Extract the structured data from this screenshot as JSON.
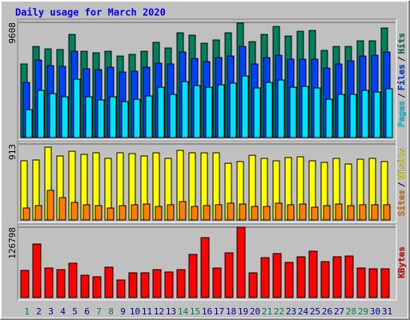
{
  "chart_data": [
    {
      "type": "bar",
      "title": "Daily usage for March 2020",
      "ylim": [
        0,
        9608
      ],
      "yticks": [
        9608
      ],
      "grid": true,
      "legend_separator": "/",
      "series": [
        {
          "name": "Hits",
          "color": "#00805c",
          "values": [
            6140,
            7600,
            7400,
            7340,
            8600,
            7200,
            7070,
            7200,
            6800,
            6940,
            7200,
            7940,
            7470,
            8740,
            8540,
            7870,
            8140,
            8740,
            9540,
            8000,
            8600,
            9270,
            8470,
            8870,
            8940,
            7270,
            7600,
            7600,
            8070,
            8070,
            9140
          ]
        },
        {
          "name": "Files",
          "color": "#0040ff",
          "values": [
            4600,
            6470,
            6000,
            5940,
            7200,
            5740,
            5670,
            5870,
            5470,
            5540,
            5870,
            6200,
            6140,
            7140,
            6600,
            6340,
            6670,
            6800,
            7600,
            6140,
            6670,
            6870,
            6540,
            6540,
            6540,
            5800,
            6140,
            6400,
            6800,
            6870,
            7140
          ]
        },
        {
          "name": "Pages",
          "color": "#00e0ff",
          "values": [
            2330,
            3940,
            3670,
            3400,
            4870,
            3400,
            3140,
            3400,
            3000,
            3200,
            3470,
            4200,
            3600,
            4670,
            4340,
            4200,
            4400,
            4540,
            5140,
            4140,
            4600,
            4800,
            4200,
            4270,
            4140,
            3200,
            3600,
            3600,
            3940,
            3800,
            4070
          ]
        }
      ]
    },
    {
      "type": "bar",
      "ylim": [
        0,
        913
      ],
      "yticks": [
        913
      ],
      "grid": true,
      "legend_separator": "/",
      "series": [
        {
          "name": "Visits",
          "color": "#ffff00",
          "values": [
            711,
            721,
            875,
            769,
            826,
            788,
            807,
            740,
            807,
            798,
            769,
            807,
            740,
            836,
            807,
            807,
            807,
            682,
            702,
            778,
            740,
            711,
            750,
            759,
            711,
            692,
            740,
            673,
            730,
            740,
            702
          ]
        },
        {
          "name": "Sites",
          "color": "#ff8000",
          "values": [
            144,
            173,
            356,
            269,
            211,
            183,
            173,
            144,
            173,
            183,
            192,
            163,
            183,
            221,
            163,
            173,
            183,
            202,
            192,
            163,
            163,
            202,
            183,
            192,
            154,
            173,
            192,
            173,
            183,
            183,
            183
          ]
        }
      ]
    },
    {
      "type": "bar",
      "ylim": [
        0,
        126798
      ],
      "yticks": [
        126798
      ],
      "grid": true,
      "categories": [
        "1",
        "2",
        "3",
        "4",
        "5",
        "6",
        "7",
        "8",
        "9",
        "10",
        "11",
        "12",
        "13",
        "14",
        "15",
        "16",
        "17",
        "18",
        "19",
        "20",
        "21",
        "22",
        "23",
        "24",
        "25",
        "26",
        "27",
        "28",
        "29",
        "30",
        "31"
      ],
      "category_colors": [
        "#008040",
        "#0000a0",
        "#0000a0",
        "#0000a0",
        "#0000a0",
        "#0000a0",
        "#008040",
        "#008040",
        "#0000a0",
        "#0000a0",
        "#0000a0",
        "#0000a0",
        "#0000a0",
        "#008040",
        "#008040",
        "#0000a0",
        "#0000a0",
        "#0000a0",
        "#0000a0",
        "#0000a0",
        "#008040",
        "#008040",
        "#0000a0",
        "#0000a0",
        "#0000a0",
        "#0000a0",
        "#0000a0",
        "#008040",
        "#008040",
        "#0000a0",
        "#0000a0"
      ],
      "series": [
        {
          "name": "KBytes",
          "color": "#ff0000",
          "values": [
            49000,
            96500,
            53300,
            50400,
            62000,
            40300,
            37500,
            54800,
            31700,
            44700,
            44700,
            50400,
            46100,
            50400,
            77800,
            108000,
            53300,
            80700,
            126798,
            44700,
            72000,
            79300,
            63400,
            73500,
            83600,
            64800,
            73500,
            74900,
            53300,
            51900,
            51900
          ]
        }
      ]
    }
  ]
}
